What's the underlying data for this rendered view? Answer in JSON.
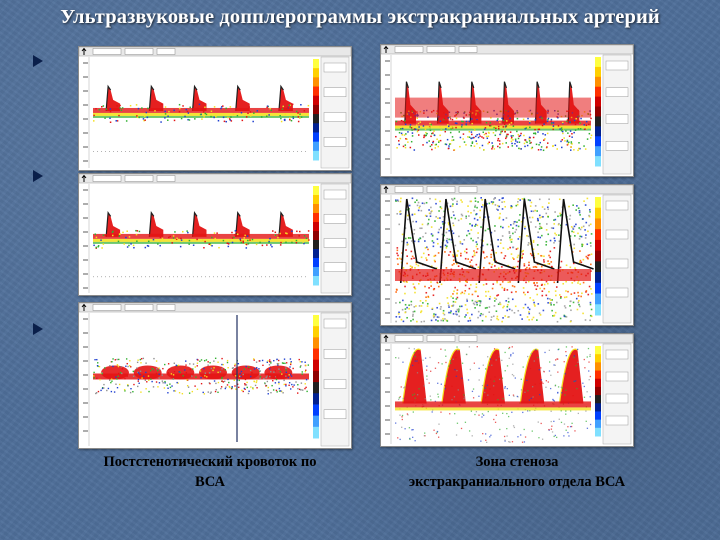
{
  "title": "Ультразвуковые допплерограммы экстракраниальных артерий",
  "captions": {
    "left": {
      "line1": "Постстенотический кровоток по",
      "line2": "ВСА"
    },
    "right": {
      "line1": "Зона стеноза",
      "line2": "экстракраниального отдела ВСА"
    }
  },
  "colors": {
    "flow_red": "#e41414",
    "flow_yellow": "#f4e020",
    "flow_green": "#30b030",
    "flow_blue": "#2040d0",
    "scale_tick": "#333333"
  },
  "panels": [
    {
      "id": "top-left",
      "pattern": "spectral-pulses",
      "icon": "arrow-up-icon"
    },
    {
      "id": "mid-left",
      "pattern": "spectral-pulses",
      "icon": "arrow-up-icon"
    },
    {
      "id": "bottom-left",
      "pattern": "post-stenotic-low-flow",
      "icon": "arrow-up-icon"
    },
    {
      "id": "top-right",
      "pattern": "spectral-pulses-dense",
      "icon": "arrow-up-icon"
    },
    {
      "id": "mid-right",
      "pattern": "stenosis-turbulent-flow",
      "icon": "arrow-up-icon"
    },
    {
      "id": "bottom-right",
      "pattern": "stenosis-high-velocity",
      "icon": "arrow-up-icon"
    }
  ]
}
